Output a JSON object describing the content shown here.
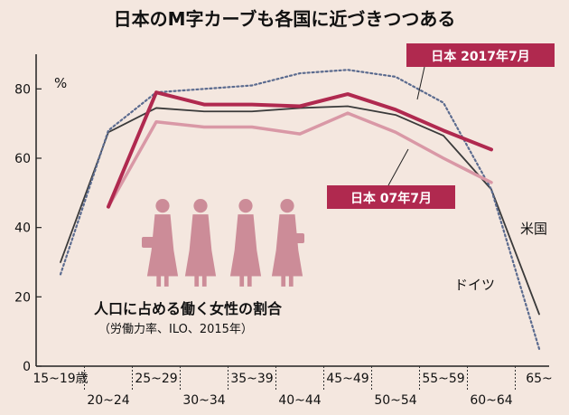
{
  "chart_data": {
    "type": "line",
    "title": "日本のM字カーブも各国に近づきつつある",
    "y_unit": "%",
    "ylim": [
      0,
      90
    ],
    "yticks": [
      0,
      20,
      40,
      60,
      80
    ],
    "categories_top": [
      "15~19歳",
      "25~29",
      "35~39",
      "45~49",
      "55~59",
      "65~"
    ],
    "categories_bottom": [
      "20~24",
      "30~34",
      "40~44",
      "50~54",
      "60~64"
    ],
    "categories": [
      "15~19",
      "20~24",
      "25~29",
      "30~34",
      "35~39",
      "40~44",
      "45~49",
      "50~54",
      "55~59",
      "60~64",
      "65~"
    ],
    "series": [
      {
        "name": "日本 2017年7月",
        "color": "#b0294f",
        "style": "solid-thick",
        "values": [
          null,
          46,
          79,
          75.5,
          75.5,
          75,
          78.5,
          74,
          68,
          62.5,
          null
        ]
      },
      {
        "name": "日本 07年7月",
        "color": "#d998a6",
        "style": "solid",
        "values": [
          null,
          46,
          70.5,
          69,
          69,
          67,
          73,
          67.5,
          60,
          53,
          null
        ]
      },
      {
        "name": "米国",
        "color": "#5b6b8f",
        "style": "dotted",
        "values": [
          26.5,
          68,
          79,
          80,
          81,
          84.5,
          85.5,
          83.5,
          76,
          51,
          5
        ]
      },
      {
        "name": "ドイツ",
        "color": "#3a3a3a",
        "style": "solid-thin",
        "values": [
          30,
          67.5,
          74.5,
          73.5,
          73.5,
          74.5,
          75,
          72.5,
          66.5,
          51,
          15
        ]
      }
    ],
    "labels": {
      "jp2017": "日本 2017年7月",
      "jp2007": "日本 07年7月",
      "us": "米国",
      "de": "ドイツ"
    },
    "note_title": "人口に占める働く女性の割合",
    "note_source": "（労働力率、ILO、2015年）",
    "grid": false,
    "colors": {
      "background": "#f4e7df",
      "silhouette": "#cc8c98",
      "label_box": "#b0294f"
    }
  }
}
